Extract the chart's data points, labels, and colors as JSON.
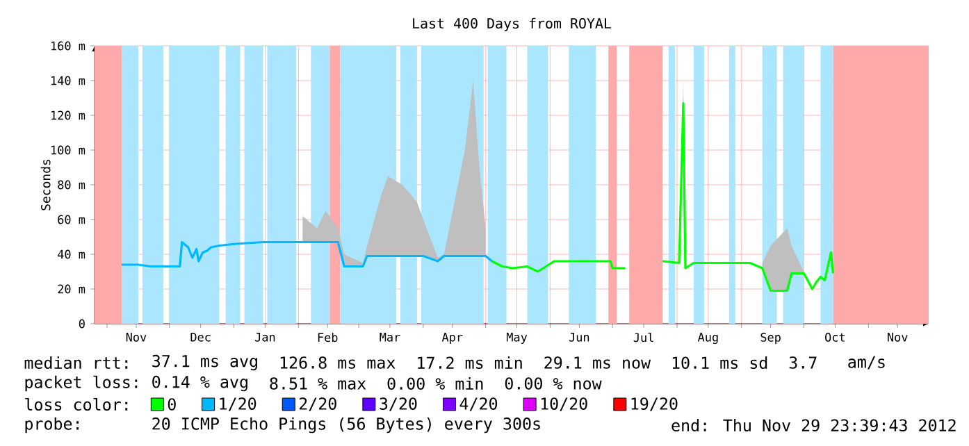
{
  "chart_data": {
    "type": "line",
    "title": "Last 400 Days from ROYAL",
    "ylabel": "Seconds",
    "legend_title": "loss color:",
    "legend": "bottom",
    "grid": true,
    "xlim": [
      "2011-10-25T23:39",
      "2012-11-29T23:39"
    ],
    "xticks": [
      {
        "value": "2011-11-01",
        "label": null
      },
      {
        "value": "2011-11-15",
        "label": "Nov"
      },
      {
        "value": "2011-12-01",
        "label": null
      },
      {
        "value": "2011-12-16",
        "label": "Dec"
      },
      {
        "value": "2012-01-01",
        "label": null
      },
      {
        "value": "2012-01-16",
        "label": "Jan"
      },
      {
        "value": "2012-02-01",
        "label": null
      },
      {
        "value": "2012-02-15",
        "label": "Feb"
      },
      {
        "value": "2012-03-01",
        "label": null
      },
      {
        "value": "2012-03-16",
        "label": "Mar"
      },
      {
        "value": "2012-04-01",
        "label": null
      },
      {
        "value": "2012-04-15",
        "label": "Apr"
      },
      {
        "value": "2012-05-01",
        "label": null
      },
      {
        "value": "2012-05-16",
        "label": "May"
      },
      {
        "value": "2012-06-01",
        "label": null
      },
      {
        "value": "2012-06-15",
        "label": "Jun"
      },
      {
        "value": "2012-07-01",
        "label": null
      },
      {
        "value": "2012-07-16",
        "label": "Jul"
      },
      {
        "value": "2012-08-01",
        "label": null
      },
      {
        "value": "2012-08-16",
        "label": "Aug"
      },
      {
        "value": "2012-09-01",
        "label": null
      },
      {
        "value": "2012-09-15",
        "label": "Sep"
      },
      {
        "value": "2012-10-01",
        "label": null
      },
      {
        "value": "2012-10-16",
        "label": "Oct"
      },
      {
        "value": "2012-11-01",
        "label": null
      },
      {
        "value": "2012-11-15",
        "label": "Nov"
      }
    ],
    "ylim": [
      0,
      160
    ],
    "yticks": [
      0,
      {
        "value": 20,
        "label": "20 m"
      },
      {
        "value": 40,
        "label": "40 m"
      },
      {
        "value": 60,
        "label": "60 m"
      },
      {
        "value": 80,
        "label": "80 m"
      },
      {
        "value": 100,
        "label": "100 m"
      },
      {
        "value": 120,
        "label": "120 m"
      },
      {
        "value": 140,
        "label": "140 m"
      },
      {
        "value": 160,
        "label": "160 m"
      }
    ],
    "bands": [
      {
        "axis": "x",
        "from": "2011-10-25T23:39",
        "to": "2011-11-08",
        "color": "#ffaaaa"
      },
      {
        "axis": "x",
        "from": "2012-02-16",
        "to": "2012-02-21",
        "color": "#ffaaaa"
      },
      {
        "axis": "x",
        "from": "2012-06-29",
        "to": "2012-07-03",
        "color": "#ffaaaa"
      },
      {
        "axis": "x",
        "from": "2012-07-09",
        "to": "2012-07-25",
        "color": "#ffaaaa"
      },
      {
        "axis": "x",
        "from": "2012-10-15",
        "to": "2012-11-29T23:39",
        "color": "#ffaaaa"
      },
      {
        "axis": "x",
        "from": "2011-11-08",
        "to": "2011-11-16",
        "color": "#aae6ff"
      },
      {
        "axis": "x",
        "from": "2011-11-18",
        "to": "2011-11-28",
        "color": "#aae6ff"
      },
      {
        "axis": "x",
        "from": "2011-12-01",
        "to": "2011-12-25",
        "color": "#aae6ff"
      },
      {
        "axis": "x",
        "from": "2011-12-28",
        "to": "2012-01-04",
        "color": "#aae6ff"
      },
      {
        "axis": "x",
        "from": "2012-01-06",
        "to": "2012-01-15",
        "color": "#aae6ff"
      },
      {
        "axis": "x",
        "from": "2012-01-17",
        "to": "2012-01-31",
        "color": "#aae6ff"
      },
      {
        "axis": "x",
        "from": "2012-02-07",
        "to": "2012-02-16",
        "color": "#aae6ff"
      },
      {
        "axis": "x",
        "from": "2012-02-21",
        "to": "2012-03-19",
        "color": "#aae6ff"
      },
      {
        "axis": "x",
        "from": "2012-03-21",
        "to": "2012-03-29",
        "color": "#aae6ff"
      },
      {
        "axis": "x",
        "from": "2012-03-31",
        "to": "2012-04-30",
        "color": "#aae6ff"
      },
      {
        "axis": "x",
        "from": "2012-05-02",
        "to": "2012-05-11",
        "color": "#aae6ff"
      },
      {
        "axis": "x",
        "from": "2012-05-21",
        "to": "2012-05-31",
        "color": "#aae6ff"
      },
      {
        "axis": "x",
        "from": "2012-06-10",
        "to": "2012-06-23",
        "color": "#aae6ff"
      },
      {
        "axis": "x",
        "from": "2012-07-28",
        "to": "2012-07-31",
        "color": "#aae6ff"
      },
      {
        "axis": "x",
        "from": "2012-08-09",
        "to": "2012-08-14",
        "color": "#aae6ff"
      },
      {
        "axis": "x",
        "from": "2012-08-26",
        "to": "2012-08-29",
        "color": "#aae6ff"
      },
      {
        "axis": "x",
        "from": "2012-09-11",
        "to": "2012-09-18",
        "color": "#aae6ff"
      },
      {
        "axis": "x",
        "from": "2012-09-21",
        "to": "2012-10-01",
        "color": "#aae6ff"
      },
      {
        "axis": "x",
        "from": "2012-10-09",
        "to": "2012-10-15",
        "color": "#aae6ff"
      }
    ],
    "series": [
      {
        "name": "0",
        "color": "#00ff00",
        "x": [
          "2012-05-04",
          "2012-05-09",
          "2012-05-14",
          "2012-05-21",
          "2012-05-26",
          "2012-06-03",
          "2012-06-17",
          "2012-06-30",
          "2012-07-01",
          "2012-07-07",
          "2012-07-12",
          "2012-07-25",
          "2012-08-02",
          "2012-08-04",
          "2012-08-05",
          "2012-08-09",
          "2012-08-22",
          "2012-09-05",
          "2012-09-11",
          "2012-09-15",
          "2012-09-23",
          "2012-09-25",
          "2012-10-01",
          "2012-10-05",
          "2012-10-07",
          "2012-10-09",
          "2012-10-11",
          "2012-10-14",
          "2012-10-15"
        ],
        "values": [
          36,
          33,
          32,
          33,
          30,
          36,
          36,
          36,
          32,
          32,
          null,
          36,
          35,
          127,
          32,
          35,
          35,
          35,
          32,
          19,
          19,
          29,
          29,
          20,
          24,
          27,
          25,
          41,
          29
        ],
        "lower": [
          null,
          null,
          null,
          null,
          null,
          null,
          null,
          null,
          null,
          null,
          null,
          null,
          35,
          127,
          32,
          null,
          null,
          null,
          32,
          19,
          19,
          29,
          29,
          null,
          null,
          null,
          null,
          null,
          null
        ],
        "upper": [
          null,
          null,
          null,
          null,
          null,
          null,
          null,
          null,
          null,
          null,
          null,
          null,
          36,
          140,
          33,
          null,
          null,
          null,
          35,
          45,
          55,
          45,
          30,
          null,
          null,
          null,
          null,
          null,
          null
        ]
      },
      {
        "name": "1/20",
        "color": "#00b8ff",
        "x": [
          "2011-11-08",
          "2011-11-16",
          "2011-11-22",
          "2011-12-06",
          "2011-12-07",
          "2011-12-10",
          "2011-12-12",
          "2011-12-14",
          "2011-12-15",
          "2011-12-17",
          "2011-12-19",
          "2011-12-21",
          "2011-12-25",
          "2012-01-02",
          "2012-01-15",
          "2012-01-29",
          "2012-02-03",
          "2012-02-10",
          "2012-02-14",
          "2012-02-20",
          "2012-02-23",
          "2012-03-03",
          "2012-03-05",
          "2012-03-12",
          "2012-03-15",
          "2012-03-22",
          "2012-03-29",
          "2012-04-01",
          "2012-04-08",
          "2012-04-11",
          "2012-04-21",
          "2012-04-25",
          "2012-04-28",
          "2012-05-01",
          "2012-05-04"
        ],
        "values": [
          34,
          34,
          33,
          33,
          47,
          44,
          38,
          43,
          36,
          41,
          42,
          44,
          45,
          46,
          47,
          47,
          47,
          47,
          47,
          47,
          33,
          33,
          39,
          39,
          39,
          39,
          39,
          39,
          36,
          39,
          39,
          39,
          39,
          39,
          36
        ],
        "lower": [
          null,
          null,
          null,
          null,
          null,
          null,
          null,
          null,
          null,
          null,
          null,
          null,
          null,
          null,
          null,
          null,
          47,
          47,
          47,
          47,
          33,
          33,
          39,
          39,
          39,
          39,
          39,
          39,
          36,
          39,
          39,
          39,
          39,
          39,
          null
        ],
        "upper": [
          null,
          null,
          null,
          null,
          null,
          null,
          null,
          null,
          null,
          null,
          null,
          null,
          null,
          null,
          null,
          null,
          62,
          55,
          65,
          55,
          40,
          35,
          45,
          75,
          85,
          80,
          70,
          60,
          38,
          40,
          100,
          140,
          90,
          55,
          null
        ]
      },
      {
        "name": "2/20",
        "color": "#0059ff"
      },
      {
        "name": "3/20",
        "color": "#5e00ff"
      },
      {
        "name": "4/20",
        "color": "#7e00ff"
      },
      {
        "name": "10/20",
        "color": "#dd00ff"
      },
      {
        "name": "19/20",
        "color": "#ff0000"
      }
    ],
    "annotations": [
      "median rtt:",
      "37.1 ms avg",
      "126.8 ms max",
      "17.2 ms min",
      "29.1 ms now",
      "10.1 ms sd",
      "3.7",
      "am/s",
      "packet loss:",
      "0.14 % avg",
      "8.51 % max",
      "0.00 % min",
      "0.00 % now",
      "probe:",
      "20 ICMP Echo Pings (56 Bytes) every 300s",
      "end: Thu Nov 29 23:39:43 2012"
    ]
  }
}
